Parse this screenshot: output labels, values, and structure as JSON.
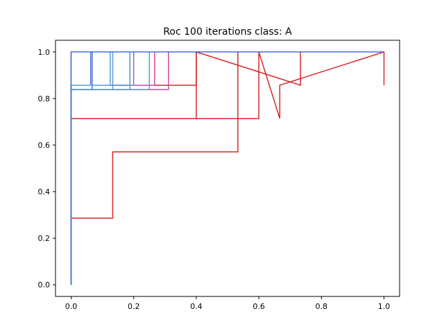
{
  "chart_data": {
    "type": "line",
    "title": "Roc 100 iterations class: A",
    "xlabel": "",
    "ylabel": "",
    "xlim": [
      -0.05,
      1.05
    ],
    "ylim": [
      -0.05,
      1.05
    ],
    "x_ticks": [
      0.0,
      0.2,
      0.4,
      0.6,
      0.8,
      1.0
    ],
    "y_ticks": [
      0.0,
      0.2,
      0.4,
      0.6,
      0.8,
      1.0
    ],
    "x_tick_labels": [
      "0.0",
      "0.2",
      "0.4",
      "0.6",
      "0.8",
      "1.0"
    ],
    "y_tick_labels": [
      "0.0",
      "0.2",
      "0.4",
      "0.6",
      "0.8",
      "1.0"
    ],
    "grid": false,
    "legend": "none",
    "series": [
      {
        "color": "#d62728",
        "x": [
          0,
          0,
          0,
          0.133,
          0.133,
          0.133,
          0.533,
          0.533,
          1.0
        ],
        "y": [
          0,
          0.286,
          0.286,
          0.286,
          0.571,
          0.571,
          0.571,
          1.0,
          1.0
        ]
      },
      {
        "color": "#d62728",
        "x": [
          0,
          0,
          0.133,
          0.133,
          0.6,
          0.6,
          0.667,
          0.667,
          1.0
        ],
        "y": [
          0,
          0.714,
          0.714,
          0.714,
          0.714,
          1.0,
          0.714,
          0.857,
          1.0
        ]
      },
      {
        "color": "#d62728",
        "x": [
          0,
          0,
          0.4,
          0.4,
          0.733,
          0.733,
          1.0,
          1.0
        ],
        "y": [
          0,
          0.857,
          0.857,
          1.0,
          0.857,
          1.0,
          1.0,
          0.857
        ]
      },
      {
        "color": "#d62728",
        "x": [
          0,
          0,
          0.4,
          0.4,
          1.0
        ],
        "y": [
          0,
          0.714,
          0.714,
          1.0,
          1.0
        ]
      },
      {
        "color": "#cc44aa",
        "x": [
          0,
          0,
          0.267,
          0.267,
          1.0
        ],
        "y": [
          0,
          0.857,
          0.857,
          1.0,
          1.0
        ]
      },
      {
        "color": "#cc44aa",
        "x": [
          0,
          0,
          0.311,
          0.311,
          1.0
        ],
        "y": [
          0,
          0.838,
          0.838,
          1.0,
          1.0
        ]
      },
      {
        "color": "#9467bd",
        "x": [
          0,
          0,
          0.2,
          0.2,
          1.0
        ],
        "y": [
          0,
          0.857,
          0.857,
          1.0,
          1.0
        ]
      },
      {
        "color": "#4c6fd8",
        "x": [
          0,
          0,
          0.0625,
          0.0625,
          1.0
        ],
        "y": [
          0,
          0.857,
          0.857,
          1.0,
          1.0
        ]
      },
      {
        "color": "#4c6fd8",
        "x": [
          0,
          0,
          0.067,
          0.067,
          1.0
        ],
        "y": [
          0,
          0.838,
          0.838,
          1.0,
          1.0
        ]
      },
      {
        "color": "#4c6fd8",
        "x": [
          0,
          0,
          0.188,
          0.188,
          1.0
        ],
        "y": [
          0,
          0.857,
          0.857,
          1.0,
          1.0
        ]
      },
      {
        "color": "#5b9bd5",
        "x": [
          0,
          0,
          0.125,
          0.125,
          1.0
        ],
        "y": [
          0,
          0.857,
          0.857,
          1.0,
          1.0
        ]
      },
      {
        "color": "#5b9bd5",
        "x": [
          0,
          0,
          0.133,
          0.133,
          1.0
        ],
        "y": [
          0,
          0.838,
          0.838,
          1.0,
          1.0
        ]
      },
      {
        "color": "#5b9bd5",
        "x": [
          0,
          0,
          0.188,
          0.188,
          1.0
        ],
        "y": [
          0,
          0.838,
          0.838,
          1.0,
          1.0
        ]
      },
      {
        "color": "#5b9bd5",
        "x": [
          0,
          0,
          0.25,
          0.25,
          1.0
        ],
        "y": [
          0,
          0.838,
          0.838,
          1.0,
          1.0
        ]
      },
      {
        "color": "#5b9bd5",
        "x": [
          0,
          0.0,
          0.0,
          1.0
        ],
        "y": [
          0,
          0.0,
          1.0,
          1.0
        ]
      },
      {
        "color": "#4c6fd8",
        "x": [
          0,
          0,
          0.0,
          1.0
        ],
        "y": [
          0,
          0.0,
          1.0,
          1.0
        ]
      }
    ]
  }
}
